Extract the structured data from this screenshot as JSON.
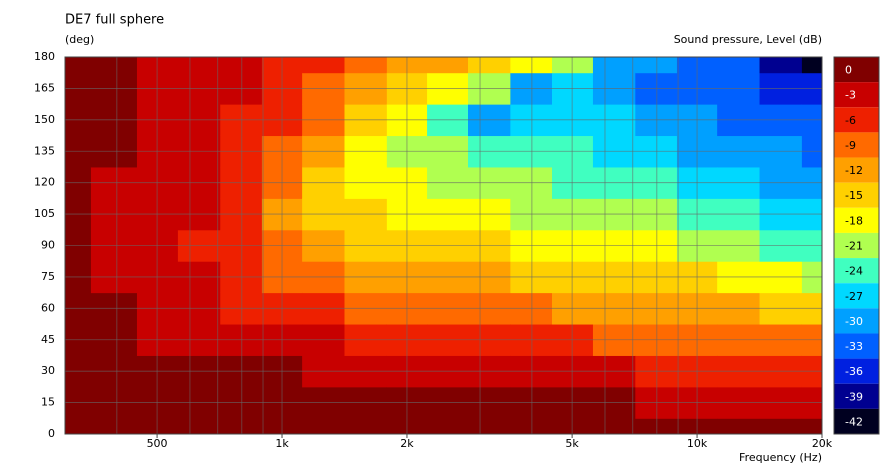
{
  "chart_data": {
    "type": "heatmap",
    "title": "DE7 full sphere",
    "y_label": "(deg)",
    "colorbar_label": "Sound pressure, Level  (dB)",
    "x_label": "Frequency  (Hz)",
    "log_x": true,
    "grid": true,
    "xlim": [
      300,
      20000
    ],
    "ylim": [
      0,
      180
    ],
    "xticks": [
      {
        "value": 500,
        "label": "500"
      },
      {
        "value": 1000,
        "label": "1k"
      },
      {
        "value": 2000,
        "label": "2k"
      },
      {
        "value": 5000,
        "label": "5k"
      },
      {
        "value": 10000,
        "label": "10k"
      },
      {
        "value": 20000,
        "label": "20k"
      }
    ],
    "xgrid": [
      400,
      500,
      600,
      700,
      800,
      900,
      1000,
      2000,
      3000,
      4000,
      5000,
      6000,
      7000,
      8000,
      9000,
      10000
    ],
    "yticks": [
      0,
      15,
      30,
      45,
      60,
      75,
      90,
      105,
      120,
      135,
      150,
      165,
      180
    ],
    "x": [
      300,
      400,
      500,
      630,
      800,
      1000,
      1250,
      1600,
      2000,
      2500,
      3150,
      4000,
      5000,
      6300,
      8000,
      10000,
      12500,
      16000,
      20000
    ],
    "y": [
      0,
      15,
      30,
      45,
      60,
      75,
      90,
      105,
      120,
      135,
      150,
      165,
      180
    ],
    "values": [
      [
        0,
        0,
        0,
        0,
        -1,
        -1,
        -1,
        -1,
        -1,
        -1,
        -1,
        -1,
        -1
      ],
      [
        -0.5,
        -1,
        -1.5,
        -2,
        -2.8,
        -3.3,
        -3.5,
        -3.4,
        -3.1,
        -2.8,
        -2.5,
        -2.3,
        -2.2
      ],
      [
        -0.5,
        -1,
        -2,
        -3.2,
        -4,
        -4.5,
        -4.8,
        -4.8,
        -4.5,
        -4,
        -3.6,
        -3.3,
        -3.1
      ],
      [
        -0.5,
        -1,
        -2.2,
        -3.5,
        -4.8,
        -5.6,
        -6,
        -5.8,
        -5.4,
        -4.8,
        -4.2,
        -3.8,
        -3.6
      ],
      [
        -0.6,
        -1.2,
        -2.5,
        -4.2,
        -6,
        -7.5,
        -8.3,
        -8.5,
        -8,
        -7,
        -6.3,
        -5.7,
        -5.3
      ],
      [
        -0.7,
        -1.4,
        -2.8,
        -5,
        -7.5,
        -10,
        -11.5,
        -12,
        -11.2,
        -10,
        -8.8,
        -7.5,
        -6.8
      ],
      [
        -0.8,
        -1.6,
        -3.2,
        -5.5,
        -8.5,
        -11.5,
        -13.5,
        -15,
        -15,
        -13.5,
        -11.5,
        -9.5,
        -8.5
      ],
      [
        -0.9,
        -1.8,
        -3.5,
        -6,
        -9.5,
        -12.8,
        -15.5,
        -17,
        -18.5,
        -18.5,
        -15,
        -12,
        -10.5
      ],
      [
        -1,
        -2,
        -3.8,
        -6.5,
        -10,
        -13.5,
        -16.5,
        -18.5,
        -20,
        -21,
        -20,
        -15,
        -12
      ],
      [
        -1,
        -2.1,
        -4,
        -7,
        -10.5,
        -14,
        -17,
        -19.5,
        -21,
        -23,
        -26,
        -20,
        -14
      ],
      [
        -1.1,
        -2.2,
        -4.3,
        -7.5,
        -11,
        -14.5,
        -17.5,
        -20,
        -22,
        -24,
        -30,
        -22,
        -16
      ],
      [
        -1.2,
        -2.4,
        -4.6,
        -8,
        -11.5,
        -15,
        -18,
        -21,
        -23,
        -25,
        -27,
        -32,
        -19
      ],
      [
        -1.3,
        -2.6,
        -5,
        -8.5,
        -12,
        -15.5,
        -18.5,
        -21.5,
        -24,
        -26,
        -27,
        -28,
        -22
      ],
      [
        -1.4,
        -2.8,
        -5.5,
        -9,
        -12.5,
        -16,
        -19,
        -22,
        -25,
        -27.5,
        -29,
        -30,
        -30
      ],
      [
        -1.5,
        -3,
        -6,
        -9.5,
        -13,
        -16.5,
        -20,
        -23,
        -26,
        -29,
        -31,
        -33,
        -30
      ],
      [
        -1.6,
        -3.3,
        -6.5,
        -10,
        -13.5,
        -17,
        -21,
        -24,
        -27,
        -30,
        -32,
        -33,
        -34
      ],
      [
        -1.8,
        -3.6,
        -7,
        -10.5,
        -14,
        -18,
        -22,
        -26,
        -29,
        -31,
        -33,
        -34,
        -35
      ],
      [
        -2,
        -4,
        -7.5,
        -11,
        -15,
        -19,
        -24,
        -28,
        -30,
        -32,
        -34,
        -36,
        -40
      ],
      [
        -2.2,
        -4.3,
        -8,
        -11.5,
        -16,
        -21,
        -26,
        -29,
        -31,
        -33,
        -35,
        -37,
        -42
      ]
    ],
    "colorbar": {
      "levels": [
        0,
        -3,
        -6,
        -9,
        -12,
        -15,
        -18,
        -21,
        -24,
        -27,
        -30,
        -33,
        -36,
        -39,
        -42
      ],
      "colors": [
        "#800000",
        "#c80000",
        "#ee2000",
        "#ff6a00",
        "#ffa000",
        "#ffd000",
        "#ffff00",
        "#b0ff50",
        "#40ffc0",
        "#00d8ff",
        "#00a0ff",
        "#0060ff",
        "#0020e0",
        "#000090",
        "#000020"
      ]
    }
  }
}
